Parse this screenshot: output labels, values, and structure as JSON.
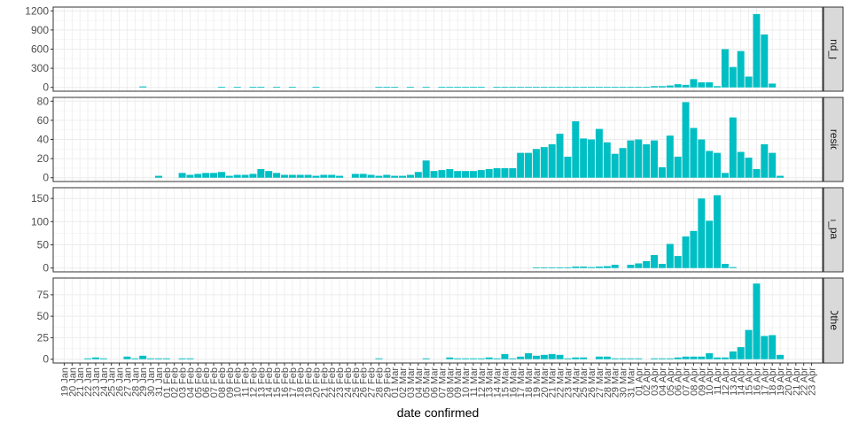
{
  "chart_data": {
    "type": "bar",
    "xlabel": "date confirmed",
    "ylabel": "",
    "bar_color": "#00BFC4",
    "grid": true,
    "dates": [
      "19 Jan",
      "20 Jan",
      "21 Jan",
      "22 Jan",
      "23 Jan",
      "24 Jan",
      "25 Jan",
      "26 Jan",
      "27 Jan",
      "28 Jan",
      "29 Jan",
      "30 Jan",
      "31 Jan",
      "01 Feb",
      "02 Feb",
      "03 Feb",
      "04 Feb",
      "05 Feb",
      "06 Feb",
      "07 Feb",
      "08 Feb",
      "09 Feb",
      "10 Feb",
      "11 Feb",
      "12 Feb",
      "13 Feb",
      "14 Feb",
      "15 Feb",
      "16 Feb",
      "17 Feb",
      "18 Feb",
      "19 Feb",
      "20 Feb",
      "21 Feb",
      "22 Feb",
      "23 Feb",
      "24 Feb",
      "25 Feb",
      "26 Feb",
      "27 Feb",
      "28 Feb",
      "29 Feb",
      "01 Mar",
      "02 Mar",
      "03 Mar",
      "04 Mar",
      "05 Mar",
      "06 Mar",
      "07 Mar",
      "08 Mar",
      "09 Mar",
      "10 Mar",
      "11 Mar",
      "12 Mar",
      "13 Mar",
      "14 Mar",
      "15 Mar",
      "16 Mar",
      "17 Mar",
      "18 Mar",
      "19 Mar",
      "20 Mar",
      "21 Mar",
      "22 Mar",
      "23 Mar",
      "24 Mar",
      "25 Mar",
      "26 Mar",
      "27 Mar",
      "28 Mar",
      "29 Mar",
      "30 Mar",
      "31 Mar",
      "01 Apr",
      "02 Apr",
      "03 Apr",
      "04 Apr",
      "05 Apr",
      "06 Apr",
      "07 Apr",
      "08 Apr",
      "09 Apr",
      "10 Apr",
      "11 Apr",
      "12 Apr",
      "13 Apr",
      "14 Apr",
      "15 Apr",
      "16 Apr",
      "17 Apr",
      "18 Apr",
      "19 Apr",
      "20 Apr",
      "21 Apr",
      "22 Apr",
      "23 Apr"
    ],
    "panels": [
      {
        "strip_label": "work_pass_and_permit_holder",
        "ylim": [
          0,
          1200
        ],
        "ticks": [
          0,
          300,
          600,
          900,
          1200
        ],
        "values": [
          0,
          0,
          0,
          0,
          0,
          0,
          0,
          0,
          0,
          0,
          15,
          0,
          0,
          0,
          0,
          0,
          0,
          0,
          0,
          0,
          10,
          0,
          10,
          0,
          10,
          10,
          0,
          10,
          0,
          10,
          0,
          0,
          10,
          0,
          0,
          0,
          0,
          0,
          0,
          0,
          10,
          10,
          10,
          0,
          10,
          0,
          10,
          0,
          10,
          10,
          10,
          10,
          10,
          10,
          0,
          10,
          10,
          10,
          10,
          10,
          10,
          10,
          10,
          10,
          10,
          10,
          10,
          10,
          10,
          10,
          10,
          10,
          10,
          10,
          10,
          20,
          20,
          30,
          50,
          40,
          130,
          80,
          80,
          20,
          600,
          320,
          570,
          170,
          1150,
          830,
          60,
          0,
          0,
          0,
          0,
          0
        ]
      },
      {
        "strip_label": "sg_resident",
        "ylim": [
          0,
          80
        ],
        "ticks": [
          0,
          20,
          40,
          60,
          80
        ],
        "values": [
          0,
          0,
          0,
          0,
          0,
          0,
          0,
          0,
          0,
          0,
          0,
          0,
          2,
          0,
          0,
          5,
          3,
          4,
          5,
          5,
          6,
          2,
          3,
          3,
          4,
          9,
          7,
          5,
          3,
          3,
          3,
          3,
          2,
          3,
          3,
          2,
          0,
          4,
          4,
          3,
          2,
          3,
          2,
          2,
          3,
          6,
          18,
          7,
          8,
          9,
          7,
          7,
          7,
          8,
          9,
          10,
          10,
          10,
          26,
          26,
          30,
          32,
          35,
          46,
          22,
          59,
          41,
          40,
          51,
          37,
          25,
          31,
          39,
          40,
          35,
          39,
          11,
          44,
          22,
          79,
          52,
          40,
          28,
          26,
          5,
          63,
          27,
          21,
          9,
          35,
          26,
          2,
          0,
          0,
          0,
          0
        ]
      },
      {
        "strip_label": "long_term_pass_holder",
        "ylim": [
          0,
          165
        ],
        "ticks": [
          0,
          50,
          100,
          150
        ],
        "values": [
          0,
          0,
          0,
          0,
          0,
          0,
          0,
          0,
          0,
          0,
          0,
          0,
          0,
          0,
          0,
          0,
          0,
          0,
          0,
          0,
          0,
          0,
          0,
          0,
          0,
          0,
          0,
          0,
          0,
          0,
          0,
          0,
          0,
          0,
          0,
          0,
          0,
          0,
          0,
          0,
          0,
          0,
          0,
          0,
          0,
          0,
          0,
          0,
          0,
          0,
          0,
          0,
          0,
          0,
          0,
          0,
          0,
          0,
          0,
          0,
          1,
          1,
          1,
          1,
          1,
          3,
          3,
          2,
          3,
          4,
          7,
          0,
          7,
          10,
          15,
          28,
          9,
          52,
          26,
          68,
          80,
          150,
          102,
          157,
          9,
          2,
          0,
          0,
          0,
          0,
          0,
          0,
          0,
          0,
          0,
          0
        ]
      },
      {
        "strip_label": "Other",
        "ylim": [
          0,
          90
        ],
        "ticks": [
          0,
          25,
          50,
          75
        ],
        "values": [
          0,
          0,
          0,
          1,
          2,
          1,
          0,
          0,
          3,
          1,
          4,
          1,
          1,
          1,
          0,
          1,
          1,
          0,
          0,
          0,
          0,
          0,
          0,
          0,
          0,
          0,
          0,
          0,
          0,
          0,
          0,
          0,
          0,
          0,
          0,
          0,
          0,
          0,
          0,
          0,
          1,
          0,
          0,
          0,
          0,
          0,
          1,
          0,
          0,
          2,
          1,
          1,
          1,
          1,
          2,
          1,
          6,
          1,
          3,
          7,
          4,
          5,
          6,
          5,
          1,
          2,
          2,
          0,
          3,
          3,
          1,
          1,
          1,
          1,
          0,
          1,
          1,
          1,
          2,
          3,
          3,
          3,
          7,
          2,
          2,
          9,
          14,
          34,
          88,
          27,
          28,
          5,
          0,
          0,
          0,
          0
        ]
      }
    ]
  }
}
